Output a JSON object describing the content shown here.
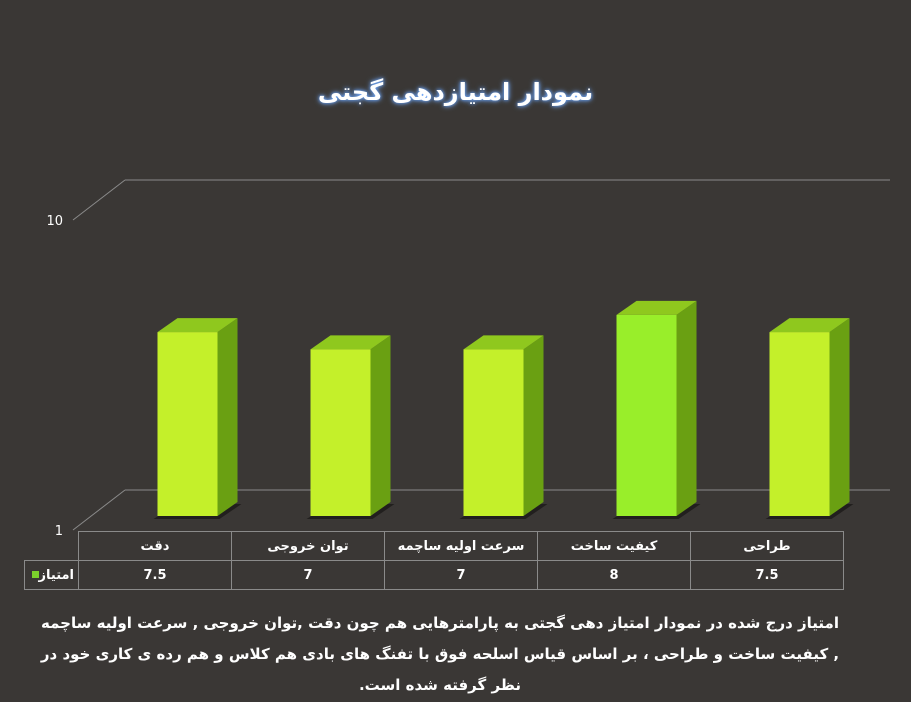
{
  "chart_data": {
    "type": "bar",
    "title": "نمودار امتیازدهی گجتی",
    "categories": [
      "دقت",
      "توان خروجی",
      "سرعت اولیه ساچمه",
      "کیفیت ساخت",
      "طراحی"
    ],
    "series": [
      {
        "name": "امتیاز",
        "values": [
          7.5,
          7,
          7,
          8,
          7.5
        ]
      }
    ],
    "value_labels": [
      "7.5",
      "7",
      "7",
      "8",
      "7.5"
    ],
    "ylim": [
      1,
      10
    ],
    "yticks": [
      "1",
      "10"
    ],
    "bar_color": "#c4f02a",
    "highlight_color": "#99ee2a",
    "legend": "table"
  },
  "description": "امتیاز درج شده در نمودار امتیاز دهی گجتی به پارامترهایی هم چون دقت ,توان خروجی , سرعت اولیه ساچمه , کیفیت ساخت و طراحی ، بر اساس قیاس اسلحه فوق با تفنگ های بادی هم کلاس و هم رده ی کاری خود در نظر گرفته شده است."
}
